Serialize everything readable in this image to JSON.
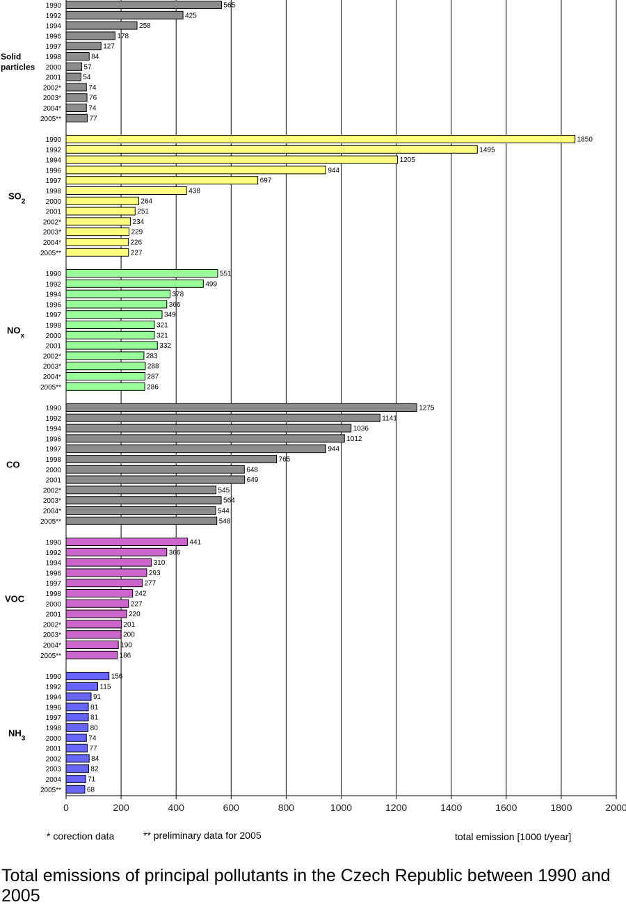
{
  "chart_data": {
    "type": "bar",
    "orientation": "horizontal",
    "title": "Total emissions of principal pollutants in the Czech Republic between 1990 and 2005",
    "xlabel": "total emission [1000 t/year]",
    "xlim": [
      0,
      2000
    ],
    "xticks": [
      0,
      200,
      400,
      600,
      800,
      1000,
      1200,
      1400,
      1600,
      1800,
      2000
    ],
    "grid": true,
    "groups": [
      {
        "label": "Solid particles",
        "label_lines": [
          "Solid",
          "particles"
        ],
        "color": "#8c8c8c",
        "years": [
          "1990",
          "1992",
          "1994",
          "1996",
          "1997",
          "1998",
          "2000",
          "2001",
          "2002*",
          "2003*",
          "2004*",
          "2005**"
        ],
        "values": [
          565,
          425,
          258,
          178,
          127,
          84,
          57,
          54,
          74,
          76,
          74,
          77
        ]
      },
      {
        "label": "SO2",
        "label_main": "SO",
        "label_sub": "2",
        "color": "#ffff80",
        "years": [
          "1990",
          "1992",
          "1994",
          "1996",
          "1997",
          "1998",
          "2000",
          "2001",
          "2002*",
          "2003*",
          "2004*",
          "2005**"
        ],
        "values": [
          1850,
          1495,
          1205,
          944,
          697,
          438,
          264,
          251,
          234,
          229,
          226,
          227
        ]
      },
      {
        "label": "NOx",
        "label_main": "NO",
        "label_sub": "x",
        "color": "#99ff99",
        "years": [
          "1990",
          "1992",
          "1994",
          "1996",
          "1997",
          "1998",
          "2000",
          "2001",
          "2002*",
          "2003*",
          "2004*",
          "2005**"
        ],
        "values": [
          551,
          499,
          378,
          366,
          349,
          321,
          321,
          332,
          283,
          288,
          287,
          286
        ]
      },
      {
        "label": "CO",
        "label_main": "CO",
        "label_sub": "",
        "color": "#8c8c8c",
        "years": [
          "1990",
          "1992",
          "1994",
          "1996",
          "1997",
          "1998",
          "2000",
          "2001",
          "2002*",
          "2003*",
          "2004*",
          "2005**"
        ],
        "values": [
          1275,
          1141,
          1036,
          1012,
          944,
          765,
          648,
          649,
          545,
          564,
          544,
          548
        ]
      },
      {
        "label": "VOC",
        "label_main": "VOC",
        "label_sub": "",
        "color": "#cc66cc",
        "years": [
          "1990",
          "1992",
          "1994",
          "1996",
          "1997",
          "1998",
          "2000",
          "2001",
          "2002*",
          "2003*",
          "2004*",
          "2005**"
        ],
        "values": [
          441,
          366,
          310,
          293,
          277,
          242,
          227,
          220,
          201,
          200,
          190,
          186
        ]
      },
      {
        "label": "NH3",
        "label_main": "NH",
        "label_sub": "3",
        "color": "#6666ff",
        "years": [
          "1990",
          "1992",
          "1994",
          "1996",
          "1997",
          "1998",
          "2000",
          "2001",
          "2002",
          "2003",
          "2004",
          "2005**"
        ],
        "values": [
          156,
          115,
          91,
          81,
          81,
          80,
          74,
          77,
          84,
          82,
          71,
          68
        ]
      }
    ]
  },
  "notes": {
    "correction": "* corection data",
    "preliminary": "** preliminary data for 2005"
  }
}
